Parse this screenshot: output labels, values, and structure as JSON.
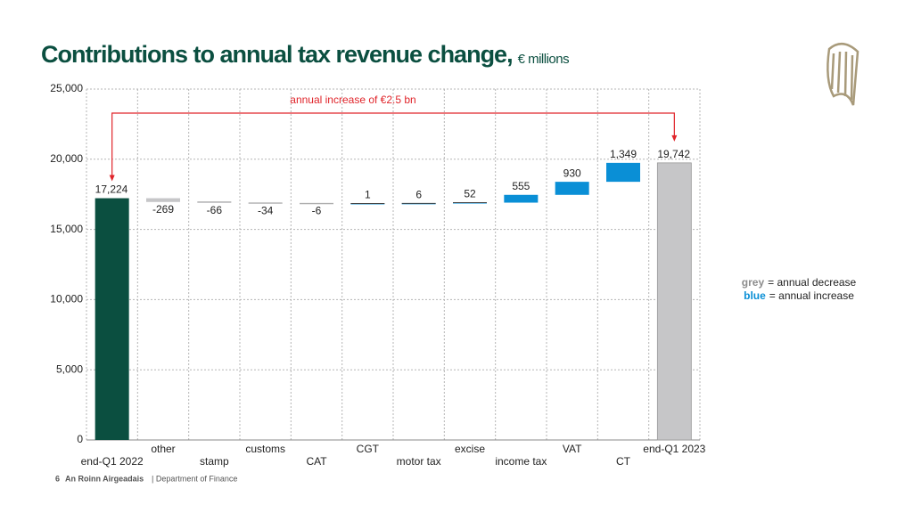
{
  "chart_data": {
    "type": "waterfall",
    "title": "Contributions to annual tax revenue change,",
    "subtitle": "€ millions",
    "categories": [
      "end-Q1 2022",
      "other",
      "stamp",
      "customs",
      "CAT",
      "CGT",
      "motor tax",
      "excise",
      "income tax",
      "VAT",
      "CT",
      "end-Q1 2023"
    ],
    "values": [
      17224,
      -269,
      -66,
      -34,
      -6,
      1,
      6,
      52,
      555,
      930,
      1349,
      19742
    ],
    "value_labels": [
      "17,224",
      "-269",
      "-66",
      "-34",
      "-6",
      "1",
      "6",
      "52",
      "555",
      "930",
      "1,349",
      "19,742"
    ],
    "colors": [
      "#0b4f40",
      "#c6c6c8",
      "#c6c6c8",
      "#c6c6c8",
      "#c6c6c8",
      "#0a8fd6",
      "#0a8fd6",
      "#0a8fd6",
      "#0a8fd6",
      "#0a8fd6",
      "#0a8fd6",
      "#c6c6c8"
    ],
    "ylim": [
      0,
      25000
    ],
    "yticks": [
      0,
      {
        "value": 5000,
        "label": "5,000"
      },
      {
        "value": 10000,
        "label": "10,000"
      },
      {
        "value": 15000,
        "label": "15,000"
      },
      {
        "value": 20000,
        "label": "20,000"
      },
      {
        "value": 25000,
        "label": "25,000"
      }
    ],
    "grid": true,
    "annotation": "annual increase of €2.5 bn",
    "legend": [
      {
        "key": "grey",
        "text": "= annual decrease",
        "color": "#8c8c8c"
      },
      {
        "key": "blue",
        "text": "= annual increase",
        "color": "#0a8fd6"
      }
    ]
  },
  "footer": {
    "page": "6",
    "org": "An Roinn Airgeadais",
    "dept": "| Department of Finance"
  }
}
